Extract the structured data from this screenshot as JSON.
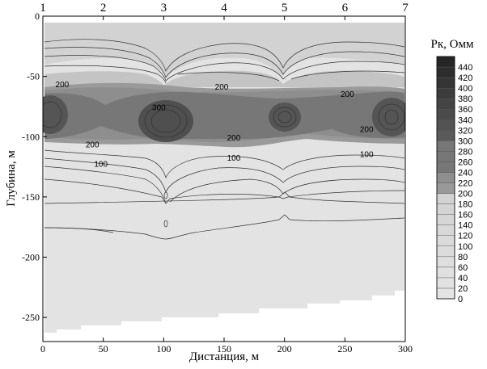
{
  "chart_data": {
    "type": "heatmap",
    "title": "",
    "xlabel": "Дистанция, м",
    "ylabel": "Глубина, м",
    "xlim": [
      0,
      300
    ],
    "ylim": [
      -270,
      0
    ],
    "x_ticks": [
      "0",
      "50",
      "100",
      "150",
      "200",
      "250",
      "300"
    ],
    "y_ticks": [
      "0",
      "-50",
      "-100",
      "-150",
      "-200",
      "-250"
    ],
    "top_labels": [
      "1",
      "2",
      "3",
      "4",
      "5",
      "6",
      "7"
    ],
    "top_label_positions": [
      0,
      50,
      100,
      150,
      200,
      250,
      300
    ],
    "colorbar": {
      "title": "Рк, Омм",
      "min": 0,
      "max": 460,
      "ticks": [
        "0",
        "20",
        "40",
        "60",
        "80",
        "100",
        "120",
        "140",
        "160",
        "180",
        "200",
        "220",
        "240",
        "260",
        "280",
        "300",
        "320",
        "340",
        "360",
        "380",
        "400",
        "420",
        "440"
      ]
    },
    "levels": [
      {
        "range": [
          0,
          200
        ],
        "color": "#e3e3e3"
      },
      {
        "range": [
          200,
          220
        ],
        "color": "#999999"
      },
      {
        "range": [
          220,
          240
        ],
        "color": "#8f8f8f"
      },
      {
        "range": [
          240,
          300
        ],
        "color": "#777777"
      },
      {
        "range": [
          300,
          460
        ],
        "color": "#555555"
      }
    ],
    "contour_labels": [
      {
        "text": "200",
        "x": 16,
        "y": -57
      },
      {
        "text": "200",
        "x": 148,
        "y": -59
      },
      {
        "text": "200",
        "x": 252,
        "y": -65
      },
      {
        "text": "300",
        "x": 96,
        "y": -76
      },
      {
        "text": "200",
        "x": 41,
        "y": -107
      },
      {
        "text": "200",
        "x": 158,
        "y": -101
      },
      {
        "text": "200",
        "x": 268,
        "y": -94
      },
      {
        "text": "100",
        "x": 48,
        "y": -123
      },
      {
        "text": "100",
        "x": 158,
        "y": -118
      },
      {
        "text": "100",
        "x": 268,
        "y": -115
      }
    ]
  }
}
